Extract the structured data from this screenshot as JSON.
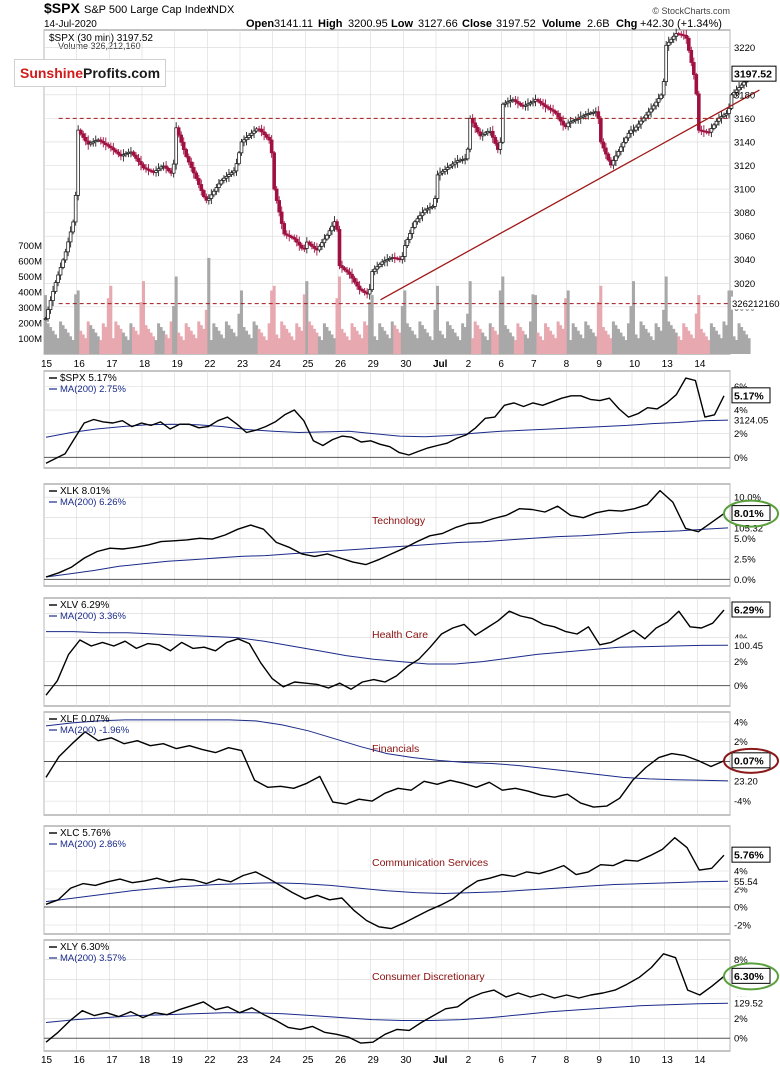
{
  "header": {
    "symbol": "$SPX",
    "name": "S&P 500 Large Cap Index",
    "exchange": "INDX",
    "date": "14-Jul-2020",
    "open_label": "Open",
    "open": "3141.11",
    "high_label": "High",
    "high": "3200.95",
    "low_label": "Low",
    "low": "3127.66",
    "close_label": "Close",
    "close": "3197.52",
    "volume_label": "Volume",
    "volume": "2.6B",
    "chg_label": "Chg",
    "chg": "+42.30 (+1.34%)",
    "brand": "© StockCharts.com",
    "sub1": "$SPX (30 min) 3197.52",
    "sub2": "Volume 326,212,160"
  },
  "logo": {
    "part1": "Sunshine",
    "part2": "Profits.com"
  },
  "colors": {
    "up": "#222222",
    "down": "#a01040",
    "navy": "#1a2a8a",
    "trend": "#a01818",
    "grid": "#d8d8d8",
    "vol_up": "#a8a8a8",
    "vol_down": "#e8a8b0",
    "green_ellipse": "#5aa03c",
    "red_ellipse": "#8a1a1a"
  },
  "x_axis_labels": [
    "15",
    "16",
    "17",
    "18",
    "19",
    "22",
    "23",
    "24",
    "25",
    "26",
    "29",
    "30",
    "Jul",
    "2",
    "6",
    "7",
    "8",
    "9",
    "10",
    "13",
    "14"
  ],
  "chart_data": [
    {
      "type": "candlestick",
      "title": "$SPX S&P 500 Large Cap Index",
      "price_ticks": [
        3000,
        3020,
        3040,
        3060,
        3080,
        3100,
        3120,
        3140,
        3160,
        3180,
        3200,
        3220
      ],
      "ylim": [
        2960,
        3235
      ],
      "volume_ticks": [
        "100M",
        "200M",
        "300M",
        "400M",
        "500M",
        "600M",
        "700M"
      ],
      "volume_max": 800,
      "last_price": "3197.52",
      "last_volume": "326212160",
      "support_level": 3160,
      "volume_reference": 325,
      "trendline": [
        {
          "session": 10.3,
          "price": 3006
        },
        {
          "session": 21.9,
          "price": 3184
        }
      ],
      "sessions": [
        "Jun 15",
        "Jun 16",
        "Jun 17",
        "Jun 18",
        "Jun 19",
        "Jun 22",
        "Jun 23",
        "Jun 24",
        "Jun 25",
        "Jun 26",
        "Jun 29",
        "Jun 30",
        "Jul 1",
        "Jul 2",
        "Jul 6",
        "Jul 7",
        "Jul 8",
        "Jul 9",
        "Jul 10",
        "Jul 13",
        "Jul 14"
      ],
      "close_path": [
        [
          0,
          2990
        ],
        [
          0.3,
          3020
        ],
        [
          0.6,
          3045
        ],
        [
          0.9,
          3078
        ],
        [
          1.0,
          3150
        ],
        [
          1.3,
          3138
        ],
        [
          1.6,
          3142
        ],
        [
          2.0,
          3135
        ],
        [
          2.3,
          3128
        ],
        [
          2.6,
          3132
        ],
        [
          3.0,
          3118
        ],
        [
          3.3,
          3114
        ],
        [
          3.6,
          3120
        ],
        [
          3.9,
          3112
        ],
        [
          4.0,
          3152
        ],
        [
          4.3,
          3128
        ],
        [
          4.6,
          3110
        ],
        [
          4.9,
          3090
        ],
        [
          5.0,
          3092
        ],
        [
          5.4,
          3108
        ],
        [
          5.8,
          3116
        ],
        [
          6.0,
          3140
        ],
        [
          6.5,
          3152
        ],
        [
          6.9,
          3140
        ],
        [
          7.0,
          3100
        ],
        [
          7.3,
          3062
        ],
        [
          7.6,
          3058
        ],
        [
          7.9,
          3048
        ],
        [
          8.0,
          3055
        ],
        [
          8.3,
          3048
        ],
        [
          8.6,
          3060
        ],
        [
          8.9,
          3075
        ],
        [
          9.0,
          3035
        ],
        [
          9.3,
          3028
        ],
        [
          9.6,
          3015
        ],
        [
          9.9,
          3010
        ],
        [
          10.0,
          3030
        ],
        [
          10.3,
          3038
        ],
        [
          10.6,
          3042
        ],
        [
          10.9,
          3040
        ],
        [
          11.0,
          3052
        ],
        [
          11.3,
          3072
        ],
        [
          11.6,
          3082
        ],
        [
          11.9,
          3086
        ],
        [
          12.0,
          3112
        ],
        [
          12.3,
          3118
        ],
        [
          12.6,
          3124
        ],
        [
          12.9,
          3126
        ],
        [
          13.0,
          3160
        ],
        [
          13.3,
          3145
        ],
        [
          13.6,
          3150
        ],
        [
          13.9,
          3130
        ],
        [
          14.0,
          3172
        ],
        [
          14.3,
          3176
        ],
        [
          14.6,
          3170
        ],
        [
          14.9,
          3174
        ],
        [
          15.0,
          3176
        ],
        [
          15.3,
          3170
        ],
        [
          15.6,
          3165
        ],
        [
          15.9,
          3152
        ],
        [
          16.0,
          3156
        ],
        [
          16.3,
          3160
        ],
        [
          16.6,
          3164
        ],
        [
          16.9,
          3166
        ],
        [
          17.0,
          3140
        ],
        [
          17.3,
          3120
        ],
        [
          17.6,
          3135
        ],
        [
          17.9,
          3150
        ],
        [
          18.0,
          3150
        ],
        [
          18.3,
          3160
        ],
        [
          18.6,
          3170
        ],
        [
          18.9,
          3182
        ],
        [
          19.0,
          3222
        ],
        [
          19.3,
          3232
        ],
        [
          19.6,
          3230
        ],
        [
          19.9,
          3190
        ],
        [
          20.0,
          3150
        ],
        [
          20.3,
          3148
        ],
        [
          20.6,
          3160
        ],
        [
          20.9,
          3165
        ],
        [
          21.0,
          3180
        ],
        [
          21.3,
          3188
        ],
        [
          21.6,
          3198
        ]
      ]
    },
    {
      "type": "line",
      "name": "$SPX",
      "label": "$SPX 5.17%",
      "ma_label": "MA(200) 2.75%",
      "y_ticks": [
        0,
        2,
        4,
        6
      ],
      "ylim": [
        -0.9,
        7.3
      ],
      "last": "5.17%",
      "ma_last": "3124.05",
      "sector": "",
      "values": [
        -0.5,
        -0.1,
        0.3,
        1.6,
        2.9,
        3.2,
        3.0,
        2.9,
        3.1,
        2.6,
        2.9,
        2.7,
        3.0,
        2.4,
        2.8,
        2.8,
        2.5,
        2.6,
        3.1,
        3.4,
        2.8,
        2.1,
        2.3,
        2.6,
        3.0,
        3.6,
        4.0,
        3.1,
        1.4,
        1.0,
        1.5,
        1.8,
        1.7,
        1.3,
        1.4,
        1.1,
        0.9,
        0.4,
        0.2,
        0.5,
        0.8,
        1.0,
        1.2,
        1.6,
        1.9,
        2.5,
        3.3,
        3.4,
        4.4,
        4.6,
        4.3,
        4.6,
        4.4,
        4.7,
        5.0,
        5.2,
        5.2,
        4.9,
        4.8,
        5.0,
        4.1,
        3.4,
        3.7,
        4.2,
        4.1,
        4.6,
        5.3,
        6.7,
        6.5,
        3.4,
        3.6,
        5.2
      ],
      "ma": [
        1.7,
        2.1,
        2.4,
        2.6,
        2.75,
        2.8,
        2.75,
        2.6,
        2.35,
        2.2,
        2.1,
        2.15,
        2.2,
        2.0,
        1.8,
        1.75,
        1.85,
        2.05,
        2.2,
        2.3,
        2.4,
        2.5,
        2.6,
        2.7,
        2.85,
        2.95,
        3.1,
        3.15
      ]
    },
    {
      "type": "line",
      "name": "XLK",
      "label": "XLK 8.01%",
      "ma_label": "MA(200) 6.26%",
      "y_ticks": [
        0.0,
        2.5,
        5.0,
        7.5,
        10.0
      ],
      "ylim": [
        -0.8,
        11.6
      ],
      "y_tick_labels": [
        "0.0%",
        "2.5%",
        "5.0%",
        "7.5%",
        "10.0%"
      ],
      "last": "8.01%",
      "ma_last": "105.32",
      "sector": "Technology",
      "values": [
        0.3,
        0.8,
        1.5,
        2.6,
        3.4,
        3.8,
        3.7,
        3.9,
        4.2,
        4.6,
        4.7,
        4.8,
        5.0,
        4.9,
        5.4,
        6.1,
        6.6,
        6.1,
        4.5,
        3.9,
        3.1,
        2.8,
        3.1,
        2.6,
        2.1,
        1.8,
        2.4,
        3.1,
        3.8,
        4.6,
        5.3,
        5.6,
        6.3,
        6.8,
        6.9,
        7.4,
        7.8,
        8.6,
        8.5,
        8.2,
        8.9,
        7.8,
        7.5,
        8.1,
        8.4,
        8.3,
        8.6,
        9.1,
        10.8,
        9.4,
        6.2,
        5.8,
        6.9,
        8.0
      ],
      "ma": [
        0.3,
        0.7,
        1.1,
        1.6,
        1.9,
        2.2,
        2.4,
        2.6,
        2.8,
        2.9,
        3.1,
        3.3,
        3.5,
        3.7,
        3.9,
        4.1,
        4.3,
        4.5,
        4.6,
        4.8,
        5.0,
        5.2,
        5.3,
        5.5,
        5.7,
        5.8,
        5.9,
        6.1,
        6.26
      ]
    },
    {
      "type": "line",
      "name": "XLV",
      "label": "XLV 6.29%",
      "ma_label": "MA(200) 3.36%",
      "y_ticks": [
        0,
        2,
        4,
        6
      ],
      "ylim": [
        -1.7,
        7.3
      ],
      "last": "6.29%",
      "ma_last": "100.45",
      "sector": "Health Care",
      "values": [
        -0.8,
        0.4,
        2.6,
        3.8,
        3.3,
        3.6,
        3.3,
        3.7,
        3.1,
        3.5,
        3.4,
        2.9,
        3.6,
        3.1,
        3.2,
        2.9,
        3.6,
        3.9,
        3.5,
        1.9,
        0.6,
        -0.1,
        0.3,
        0.2,
        0.1,
        -0.2,
        0.2,
        -0.3,
        0.3,
        0.5,
        0.3,
        0.8,
        1.6,
        2.2,
        3.2,
        4.3,
        4.8,
        5.1,
        4.2,
        4.8,
        5.4,
        6.2,
        5.8,
        5.6,
        5.1,
        4.9,
        4.5,
        4.3,
        4.9,
        3.4,
        3.6,
        4.1,
        4.6,
        3.9,
        4.8,
        5.3,
        6.2,
        4.9,
        4.8,
        5.2,
        6.3
      ],
      "ma": [
        4.5,
        4.5,
        4.4,
        4.4,
        4.3,
        4.2,
        4.1,
        4.0,
        3.7,
        3.3,
        2.9,
        2.5,
        2.2,
        2.0,
        1.8,
        1.8,
        2.0,
        2.3,
        2.6,
        2.8,
        3.0,
        3.2,
        3.25,
        3.3,
        3.35,
        3.36
      ]
    },
    {
      "type": "line",
      "name": "XLF",
      "label": "XLF 0.07%",
      "ma_label": "MA(200) -1.96%",
      "y_ticks": [
        -4,
        -2,
        0,
        2,
        4
      ],
      "ylim": [
        -5.4,
        5.0
      ],
      "last": "0.07%",
      "ma_last": "23.20",
      "sector": "Financials",
      "values": [
        -1.6,
        0.5,
        1.8,
        3.0,
        2.1,
        2.4,
        1.8,
        2.1,
        1.6,
        1.8,
        1.3,
        1.6,
        1.2,
        0.9,
        1.4,
        1.1,
        -1.9,
        -2.6,
        -2.5,
        -2.7,
        -2.2,
        -1.5,
        -4.1,
        -4.3,
        -3.8,
        -4.0,
        -3.2,
        -2.7,
        -2.9,
        -2.0,
        -2.3,
        -1.9,
        -2.2,
        -2.6,
        -2.1,
        -2.9,
        -2.7,
        -3.0,
        -3.4,
        -3.6,
        -3.3,
        -4.2,
        -4.6,
        -4.5,
        -3.7,
        -1.9,
        -0.6,
        0.4,
        0.8,
        0.6,
        0.1,
        -0.5,
        0.07
      ],
      "ma": [
        3.6,
        3.9,
        4.1,
        4.2,
        4.2,
        4.2,
        4.2,
        4.2,
        4.1,
        3.7,
        3.1,
        2.3,
        1.5,
        0.8,
        0.4,
        0.1,
        -0.1,
        -0.2,
        -0.4,
        -0.7,
        -1.0,
        -1.3,
        -1.6,
        -1.75,
        -1.85,
        -1.9,
        -1.96
      ]
    },
    {
      "type": "line",
      "name": "XLC",
      "label": "XLC 5.76%",
      "ma_label": "MA(200) 2.86%",
      "y_ticks": [
        -2,
        0,
        2,
        4
      ],
      "ylim": [
        -3.0,
        9.0
      ],
      "last": "5.76%",
      "ma_last": "55.54",
      "sector": "Communication Services",
      "values": [
        0.3,
        0.8,
        2.1,
        2.6,
        2.4,
        2.8,
        3.1,
        2.7,
        2.9,
        3.2,
        2.8,
        3.1,
        3.0,
        2.6,
        3.1,
        2.8,
        3.5,
        3.9,
        3.2,
        2.4,
        1.6,
        0.9,
        1.3,
        0.8,
        1.0,
        -0.4,
        -1.5,
        -2.2,
        -2.4,
        -1.8,
        -1.1,
        -0.4,
        0.2,
        0.9,
        2.0,
        2.9,
        3.2,
        3.6,
        3.4,
        3.9,
        3.7,
        4.1,
        4.6,
        3.6,
        3.9,
        4.7,
        4.6,
        5.2,
        5.1,
        5.7,
        6.4,
        7.7,
        6.6,
        4.1,
        4.3,
        5.76
      ],
      "ma": [
        0.6,
        1.0,
        1.4,
        1.8,
        2.1,
        2.3,
        2.5,
        2.6,
        2.7,
        2.6,
        2.4,
        2.1,
        1.8,
        1.6,
        1.5,
        1.6,
        1.7,
        1.9,
        2.1,
        2.3,
        2.5,
        2.6,
        2.7,
        2.8,
        2.86
      ]
    },
    {
      "type": "line",
      "name": "XLY",
      "label": "XLY 6.30%",
      "ma_label": "MA(200) 3.57%",
      "y_ticks": [
        0,
        2,
        4,
        6,
        8
      ],
      "ylim": [
        -1.3,
        10.0
      ],
      "last": "6.30%",
      "ma_last": "129.52",
      "sector": "Consumer Discretionary",
      "values": [
        -0.4,
        0.6,
        1.8,
        2.8,
        2.3,
        2.6,
        2.2,
        2.7,
        2.1,
        2.6,
        2.4,
        2.9,
        3.3,
        3.7,
        2.9,
        3.2,
        2.6,
        3.1,
        2.4,
        1.8,
        1.1,
        0.9,
        1.2,
        0.6,
        0.4,
        0.1,
        -0.5,
        -0.4,
        0.4,
        0.9,
        0.8,
        1.6,
        2.3,
        3.0,
        3.2,
        4.1,
        4.6,
        4.9,
        4.2,
        4.6,
        4.2,
        4.5,
        4.1,
        4.4,
        4.1,
        4.4,
        4.6,
        4.9,
        5.5,
        6.2,
        7.2,
        8.6,
        8.2,
        4.9,
        4.4,
        5.3,
        6.3
      ],
      "ma": [
        1.6,
        1.9,
        2.1,
        2.3,
        2.4,
        2.5,
        2.6,
        2.6,
        2.5,
        2.3,
        2.1,
        1.9,
        1.8,
        1.8,
        1.9,
        2.1,
        2.4,
        2.7,
        2.9,
        3.1,
        3.3,
        3.4,
        3.5,
        3.57
      ]
    }
  ]
}
